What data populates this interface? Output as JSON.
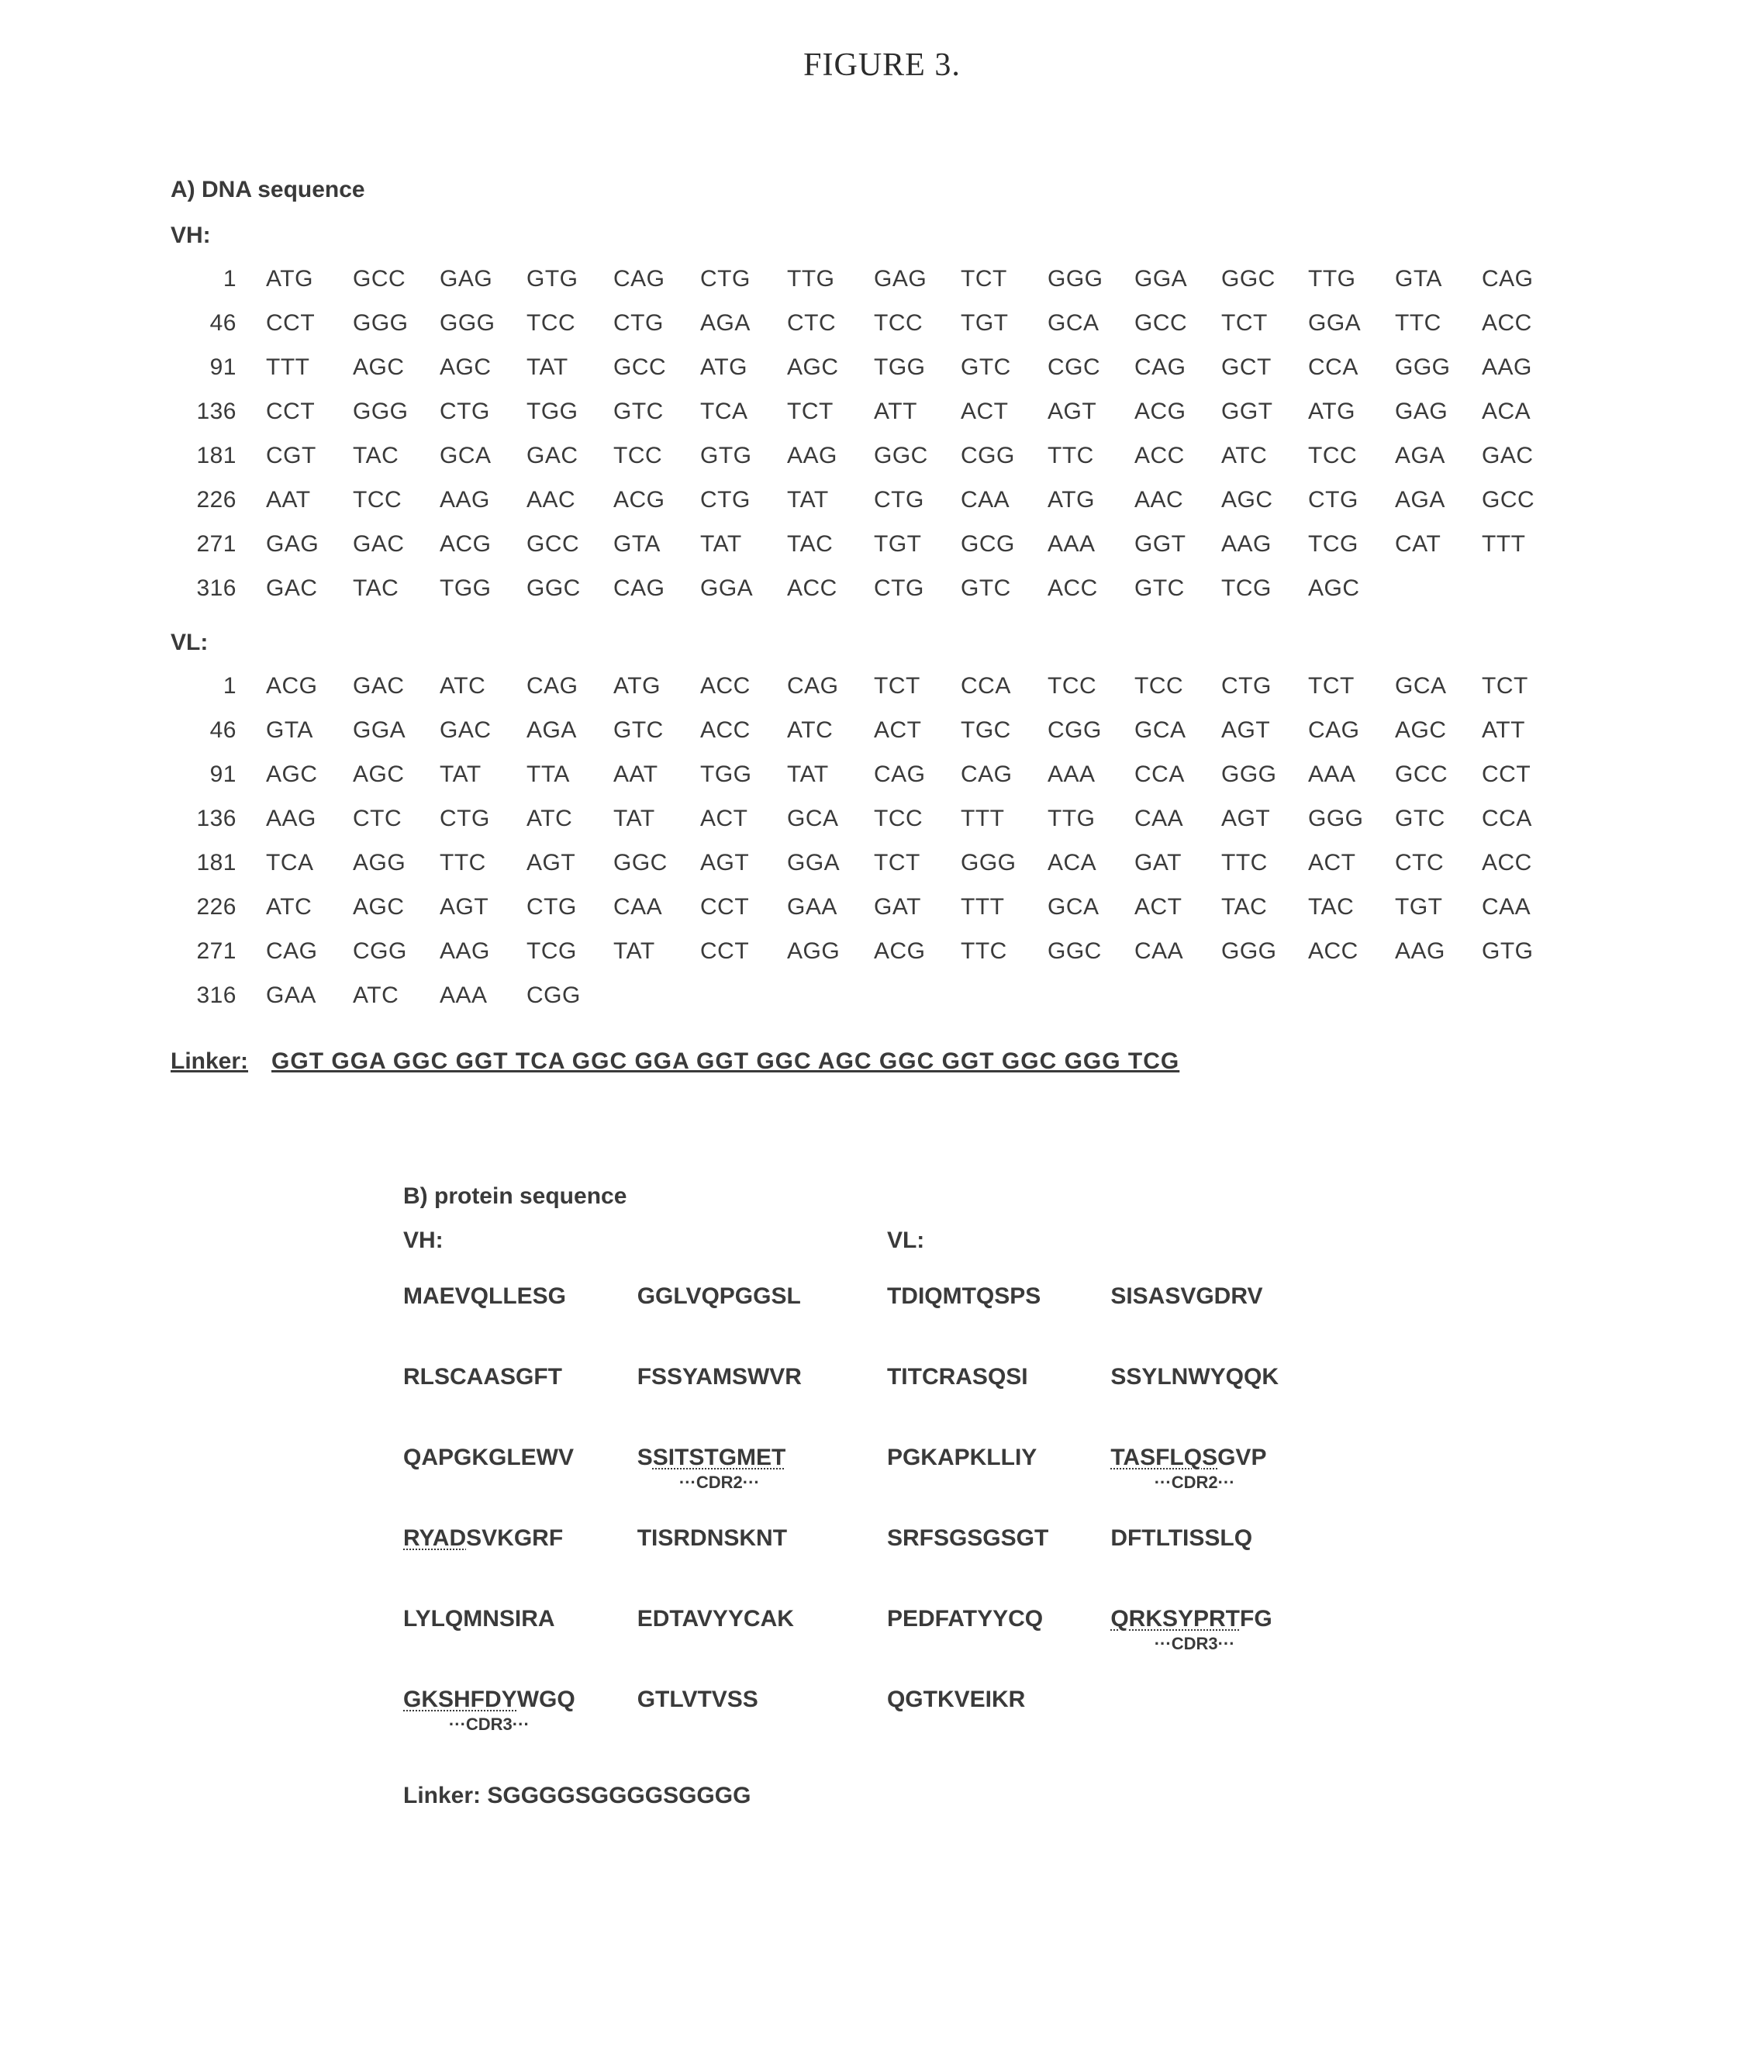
{
  "figure_title": "FIGURE 3.",
  "dna": {
    "heading": "A) DNA sequence",
    "chains": [
      {
        "label": "VH:",
        "rows": [
          {
            "pos": "1",
            "codons": [
              "ATG",
              "GCC",
              "GAG",
              "GTG",
              "CAG",
              "CTG",
              "TTG",
              "GAG",
              "TCT",
              "GGG",
              "GGA",
              "GGC",
              "TTG",
              "GTA",
              "CAG"
            ]
          },
          {
            "pos": "46",
            "codons": [
              "CCT",
              "GGG",
              "GGG",
              "TCC",
              "CTG",
              "AGA",
              "CTC",
              "TCC",
              "TGT",
              "GCA",
              "GCC",
              "TCT",
              "GGA",
              "TTC",
              "ACC"
            ]
          },
          {
            "pos": "91",
            "codons": [
              "TTT",
              "AGC",
              "AGC",
              "TAT",
              "GCC",
              "ATG",
              "AGC",
              "TGG",
              "GTC",
              "CGC",
              "CAG",
              "GCT",
              "CCA",
              "GGG",
              "AAG"
            ]
          },
          {
            "pos": "136",
            "codons": [
              "CCT",
              "GGG",
              "CTG",
              "TGG",
              "GTC",
              "TCA",
              "TCT",
              "ATT",
              "ACT",
              "AGT",
              "ACG",
              "GGT",
              "ATG",
              "GAG",
              "ACA"
            ]
          },
          {
            "pos": "181",
            "codons": [
              "CGT",
              "TAC",
              "GCA",
              "GAC",
              "TCC",
              "GTG",
              "AAG",
              "GGC",
              "CGG",
              "TTC",
              "ACC",
              "ATC",
              "TCC",
              "AGA",
              "GAC"
            ]
          },
          {
            "pos": "226",
            "codons": [
              "AAT",
              "TCC",
              "AAG",
              "AAC",
              "ACG",
              "CTG",
              "TAT",
              "CTG",
              "CAA",
              "ATG",
              "AAC",
              "AGC",
              "CTG",
              "AGA",
              "GCC"
            ]
          },
          {
            "pos": "271",
            "codons": [
              "GAG",
              "GAC",
              "ACG",
              "GCC",
              "GTA",
              "TAT",
              "TAC",
              "TGT",
              "GCG",
              "AAA",
              "GGT",
              "AAG",
              "TCG",
              "CAT",
              "TTT"
            ]
          },
          {
            "pos": "316",
            "codons": [
              "GAC",
              "TAC",
              "TGG",
              "GGC",
              "CAG",
              "GGA",
              "ACC",
              "CTG",
              "GTC",
              "ACC",
              "GTC",
              "TCG",
              "AGC"
            ]
          }
        ]
      },
      {
        "label": "VL:",
        "rows": [
          {
            "pos": "1",
            "codons": [
              "ACG",
              "GAC",
              "ATC",
              "CAG",
              "ATG",
              "ACC",
              "CAG",
              "TCT",
              "CCA",
              "TCC",
              "TCC",
              "CTG",
              "TCT",
              "GCA",
              "TCT"
            ]
          },
          {
            "pos": "46",
            "codons": [
              "GTA",
              "GGA",
              "GAC",
              "AGA",
              "GTC",
              "ACC",
              "ATC",
              "ACT",
              "TGC",
              "CGG",
              "GCA",
              "AGT",
              "CAG",
              "AGC",
              "ATT"
            ]
          },
          {
            "pos": "91",
            "codons": [
              "AGC",
              "AGC",
              "TAT",
              "TTA",
              "AAT",
              "TGG",
              "TAT",
              "CAG",
              "CAG",
              "AAA",
              "CCA",
              "GGG",
              "AAA",
              "GCC",
              "CCT"
            ]
          },
          {
            "pos": "136",
            "codons": [
              "AAG",
              "CTC",
              "CTG",
              "ATC",
              "TAT",
              "ACT",
              "GCA",
              "TCC",
              "TTT",
              "TTG",
              "CAA",
              "AGT",
              "GGG",
              "GTC",
              "CCA"
            ]
          },
          {
            "pos": "181",
            "codons": [
              "TCA",
              "AGG",
              "TTC",
              "AGT",
              "GGC",
              "AGT",
              "GGA",
              "TCT",
              "GGG",
              "ACA",
              "GAT",
              "TTC",
              "ACT",
              "CTC",
              "ACC"
            ]
          },
          {
            "pos": "226",
            "codons": [
              "ATC",
              "AGC",
              "AGT",
              "CTG",
              "CAA",
              "CCT",
              "GAA",
              "GAT",
              "TTT",
              "GCA",
              "ACT",
              "TAC",
              "TAC",
              "TGT",
              "CAA"
            ]
          },
          {
            "pos": "271",
            "codons": [
              "CAG",
              "CGG",
              "AAG",
              "TCG",
              "TAT",
              "CCT",
              "AGG",
              "ACG",
              "TTC",
              "GGC",
              "CAA",
              "GGG",
              "ACC",
              "AAG",
              "GTG"
            ]
          },
          {
            "pos": "316",
            "codons": [
              "GAA",
              "ATC",
              "AAA",
              "CGG"
            ]
          }
        ]
      }
    ],
    "linker_label": "Linker:",
    "linker_seq": "GGT GGA GGC GGT TCA GGC GGA GGT GGC AGC GGC GGT GGC GGG TCG"
  },
  "protein": {
    "heading": "B) protein sequence",
    "domains": [
      {
        "label": "VH:",
        "cols": [
          [
            {
              "text": "MAEVQLLESG"
            },
            {
              "text": "RLSCAASGFT"
            },
            {
              "text": "QAPGKGLEWV"
            },
            {
              "text": "RYADSVKGRF",
              "underline": [
                0,
                4
              ]
            },
            {
              "text": "LYLQMNSIRA"
            },
            {
              "text": "GKSHFDYWGQ",
              "underline": [
                0,
                7
              ],
              "cdr": "CDR3"
            }
          ],
          [
            {
              "text": "GGLVQPGGSL"
            },
            {
              "text": "FSSYAMSWVR"
            },
            {
              "text": "SSITSTGMET",
              "underline": [
                1,
                10
              ],
              "cdr": "CDR2"
            },
            {
              "text": "TISRDNSKNT"
            },
            {
              "text": "EDTAVYYCAK"
            },
            {
              "text": "GTLVTVSS"
            }
          ]
        ]
      },
      {
        "label": "VL:",
        "cols": [
          [
            {
              "text": "TDIQMTQSPS"
            },
            {
              "text": "TITCRASQSI"
            },
            {
              "text": "PGKAPKLLIY"
            },
            {
              "text": "SRFSGSGSGT"
            },
            {
              "text": "PEDFATYYCQ"
            },
            {
              "text": "QGTKVEIKR"
            }
          ],
          [
            {
              "text": "SISASVGDRV"
            },
            {
              "text": "SSYLNWYQQK"
            },
            {
              "text": "TASFLQSGVP",
              "underline": [
                0,
                7
              ],
              "cdr": "CDR2"
            },
            {
              "text": "DFTLTISSLQ"
            },
            {
              "text": "QRKSYPRTFG",
              "underline": [
                0,
                8
              ],
              "cdr": "CDR3"
            }
          ]
        ]
      }
    ],
    "linker_label": "Linker:",
    "linker_seq": "SGGGGSGGGGSGGGG"
  }
}
